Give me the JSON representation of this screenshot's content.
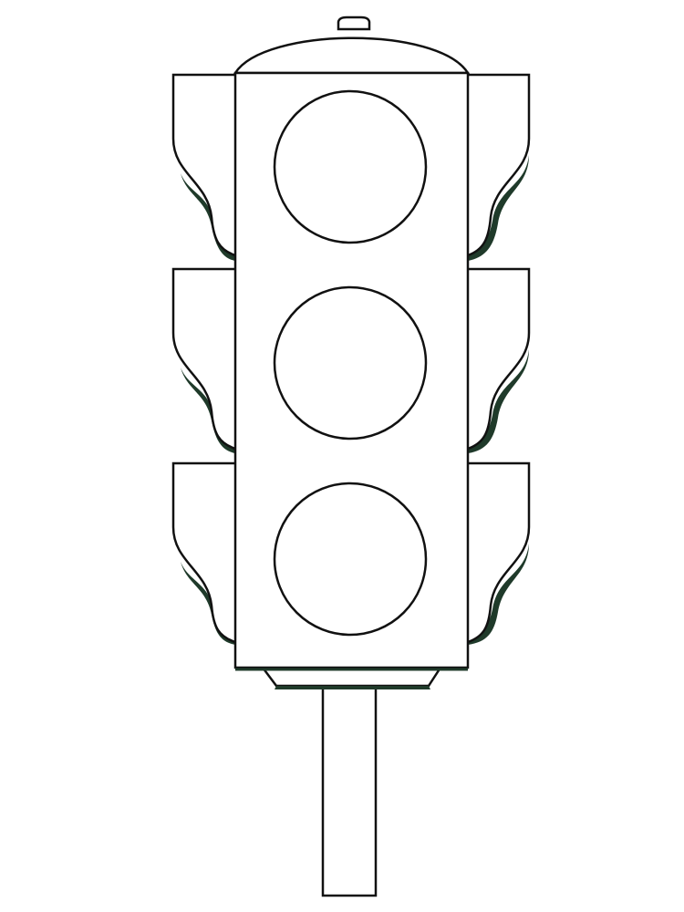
{
  "drawing": {
    "subject": "traffic-light",
    "lamp_count": 3,
    "colors": {
      "background": "#ffffff",
      "line": "#111111",
      "fill": "#ffffff",
      "visor_shadow": "#1f3a2a"
    }
  }
}
